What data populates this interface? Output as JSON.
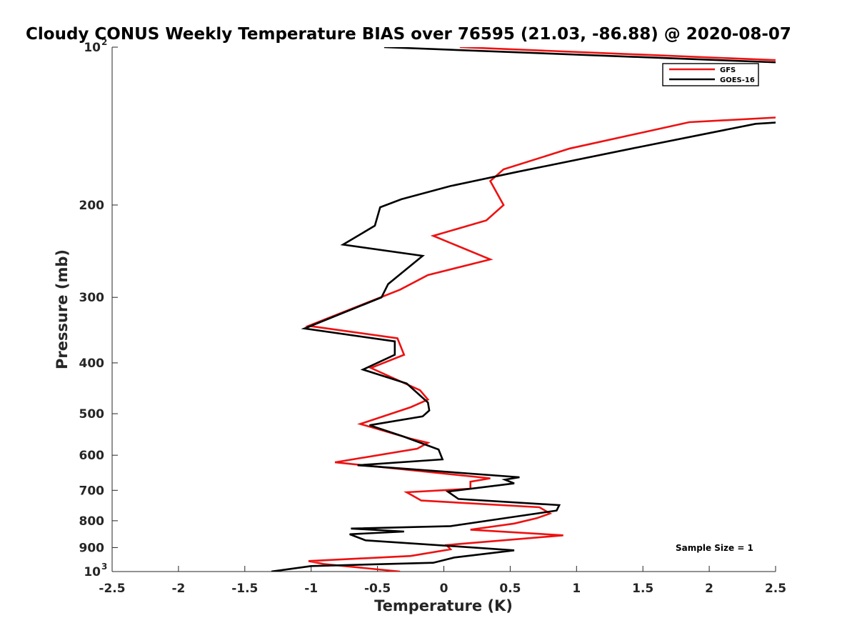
{
  "chart_data": {
    "type": "line",
    "title": "Cloudy CONUS Weekly Temperature BIAS over 76595 (21.03, -86.88) @ 2020-08-07",
    "xlabel": "Temperature (K)",
    "ylabel": "Pressure (mb)",
    "xlim": [
      -2.5,
      2.5
    ],
    "ylim": [
      100,
      1000
    ],
    "yscale": "log",
    "yreversed": true,
    "x_ticks": [
      "-2.5",
      "-2",
      "-1.5",
      "-1",
      "-0.5",
      "0",
      "0.5",
      "1",
      "1.5",
      "2",
      "2.5"
    ],
    "x_tick_values": [
      -2.5,
      -2,
      -1.5,
      -1,
      -0.5,
      0,
      0.5,
      1,
      1.5,
      2,
      2.5
    ],
    "y_ticks": [
      {
        "value": 100,
        "base": "10",
        "exp": "2"
      },
      {
        "value": 200,
        "label": "200"
      },
      {
        "value": 300,
        "label": "300"
      },
      {
        "value": 400,
        "label": "400"
      },
      {
        "value": 500,
        "label": "500"
      },
      {
        "value": 600,
        "label": "600"
      },
      {
        "value": 700,
        "label": "700"
      },
      {
        "value": 800,
        "label": "800"
      },
      {
        "value": 900,
        "label": "900"
      },
      {
        "value": 1000,
        "base": "10",
        "exp": "3"
      }
    ],
    "legend": {
      "position": "top-right",
      "entries": [
        "GFS",
        "GOES-16"
      ]
    },
    "annotation": "Sample Size = 1",
    "series": [
      {
        "name": "GFS",
        "color": "#ee1111",
        "points": [
          [
            0.12,
            100
          ],
          [
            2.55,
            106
          ],
          [
            2.55,
            136
          ],
          [
            1.85,
            139
          ],
          [
            0.95,
            156
          ],
          [
            0.45,
            171
          ],
          [
            0.35,
            180
          ],
          [
            0.45,
            200
          ],
          [
            0.32,
            214
          ],
          [
            -0.08,
            229
          ],
          [
            0.35,
            254
          ],
          [
            -0.12,
            272
          ],
          [
            -0.33,
            290
          ],
          [
            -1.02,
            340
          ],
          [
            -0.35,
            359
          ],
          [
            -0.3,
            386
          ],
          [
            -0.55,
            409
          ],
          [
            -0.18,
            451
          ],
          [
            -0.12,
            470
          ],
          [
            -0.25,
            486
          ],
          [
            -0.63,
            523
          ],
          [
            -0.25,
            558
          ],
          [
            -0.12,
            568
          ],
          [
            -0.2,
            583
          ],
          [
            -0.82,
            619
          ],
          [
            0.35,
            664
          ],
          [
            0.2,
            674
          ],
          [
            0.2,
            695
          ],
          [
            -0.28,
            706
          ],
          [
            -0.17,
            732
          ],
          [
            0.72,
            754
          ],
          [
            0.8,
            775
          ],
          [
            0.7,
            791
          ],
          [
            0.53,
            810
          ],
          [
            0.2,
            832
          ],
          [
            0.9,
            853
          ],
          [
            0.02,
            890
          ],
          [
            0.05,
            907
          ],
          [
            -0.25,
            934
          ],
          [
            -1.02,
            955
          ],
          [
            -0.9,
            968
          ],
          [
            -0.33,
            1000
          ]
        ]
      },
      {
        "name": "GOES-16",
        "color": "#000000",
        "points": [
          [
            -0.45,
            100
          ],
          [
            2.55,
            107
          ],
          [
            2.55,
            139
          ],
          [
            2.35,
            140
          ],
          [
            1.42,
            156
          ],
          [
            0.55,
            173
          ],
          [
            0.05,
            184
          ],
          [
            -0.32,
            195
          ],
          [
            -0.48,
            202
          ],
          [
            -0.52,
            219
          ],
          [
            -0.76,
            238
          ],
          [
            -0.16,
            250
          ],
          [
            -0.42,
            283
          ],
          [
            -0.47,
            300
          ],
          [
            -1.05,
            344
          ],
          [
            -0.37,
            364
          ],
          [
            -0.37,
            386
          ],
          [
            -0.61,
            412
          ],
          [
            -0.28,
            438
          ],
          [
            -0.12,
            476
          ],
          [
            -0.11,
            493
          ],
          [
            -0.16,
            506
          ],
          [
            -0.56,
            526
          ],
          [
            -0.31,
            552
          ],
          [
            -0.04,
            585
          ],
          [
            -0.01,
            611
          ],
          [
            -0.65,
            627
          ],
          [
            0.57,
            661
          ],
          [
            0.46,
            668
          ],
          [
            0.53,
            679
          ],
          [
            0.03,
            704
          ],
          [
            0.11,
            727
          ],
          [
            0.87,
            747
          ],
          [
            0.85,
            765
          ],
          [
            0.52,
            787
          ],
          [
            0.05,
            819
          ],
          [
            -0.7,
            828
          ],
          [
            -0.3,
            839
          ],
          [
            -0.71,
            849
          ],
          [
            -0.59,
            872
          ],
          [
            0.08,
            895
          ],
          [
            0.53,
            911
          ],
          [
            0.08,
            940
          ],
          [
            -0.08,
            962
          ],
          [
            -1.0,
            976
          ],
          [
            -1.3,
            1000
          ]
        ]
      }
    ]
  }
}
